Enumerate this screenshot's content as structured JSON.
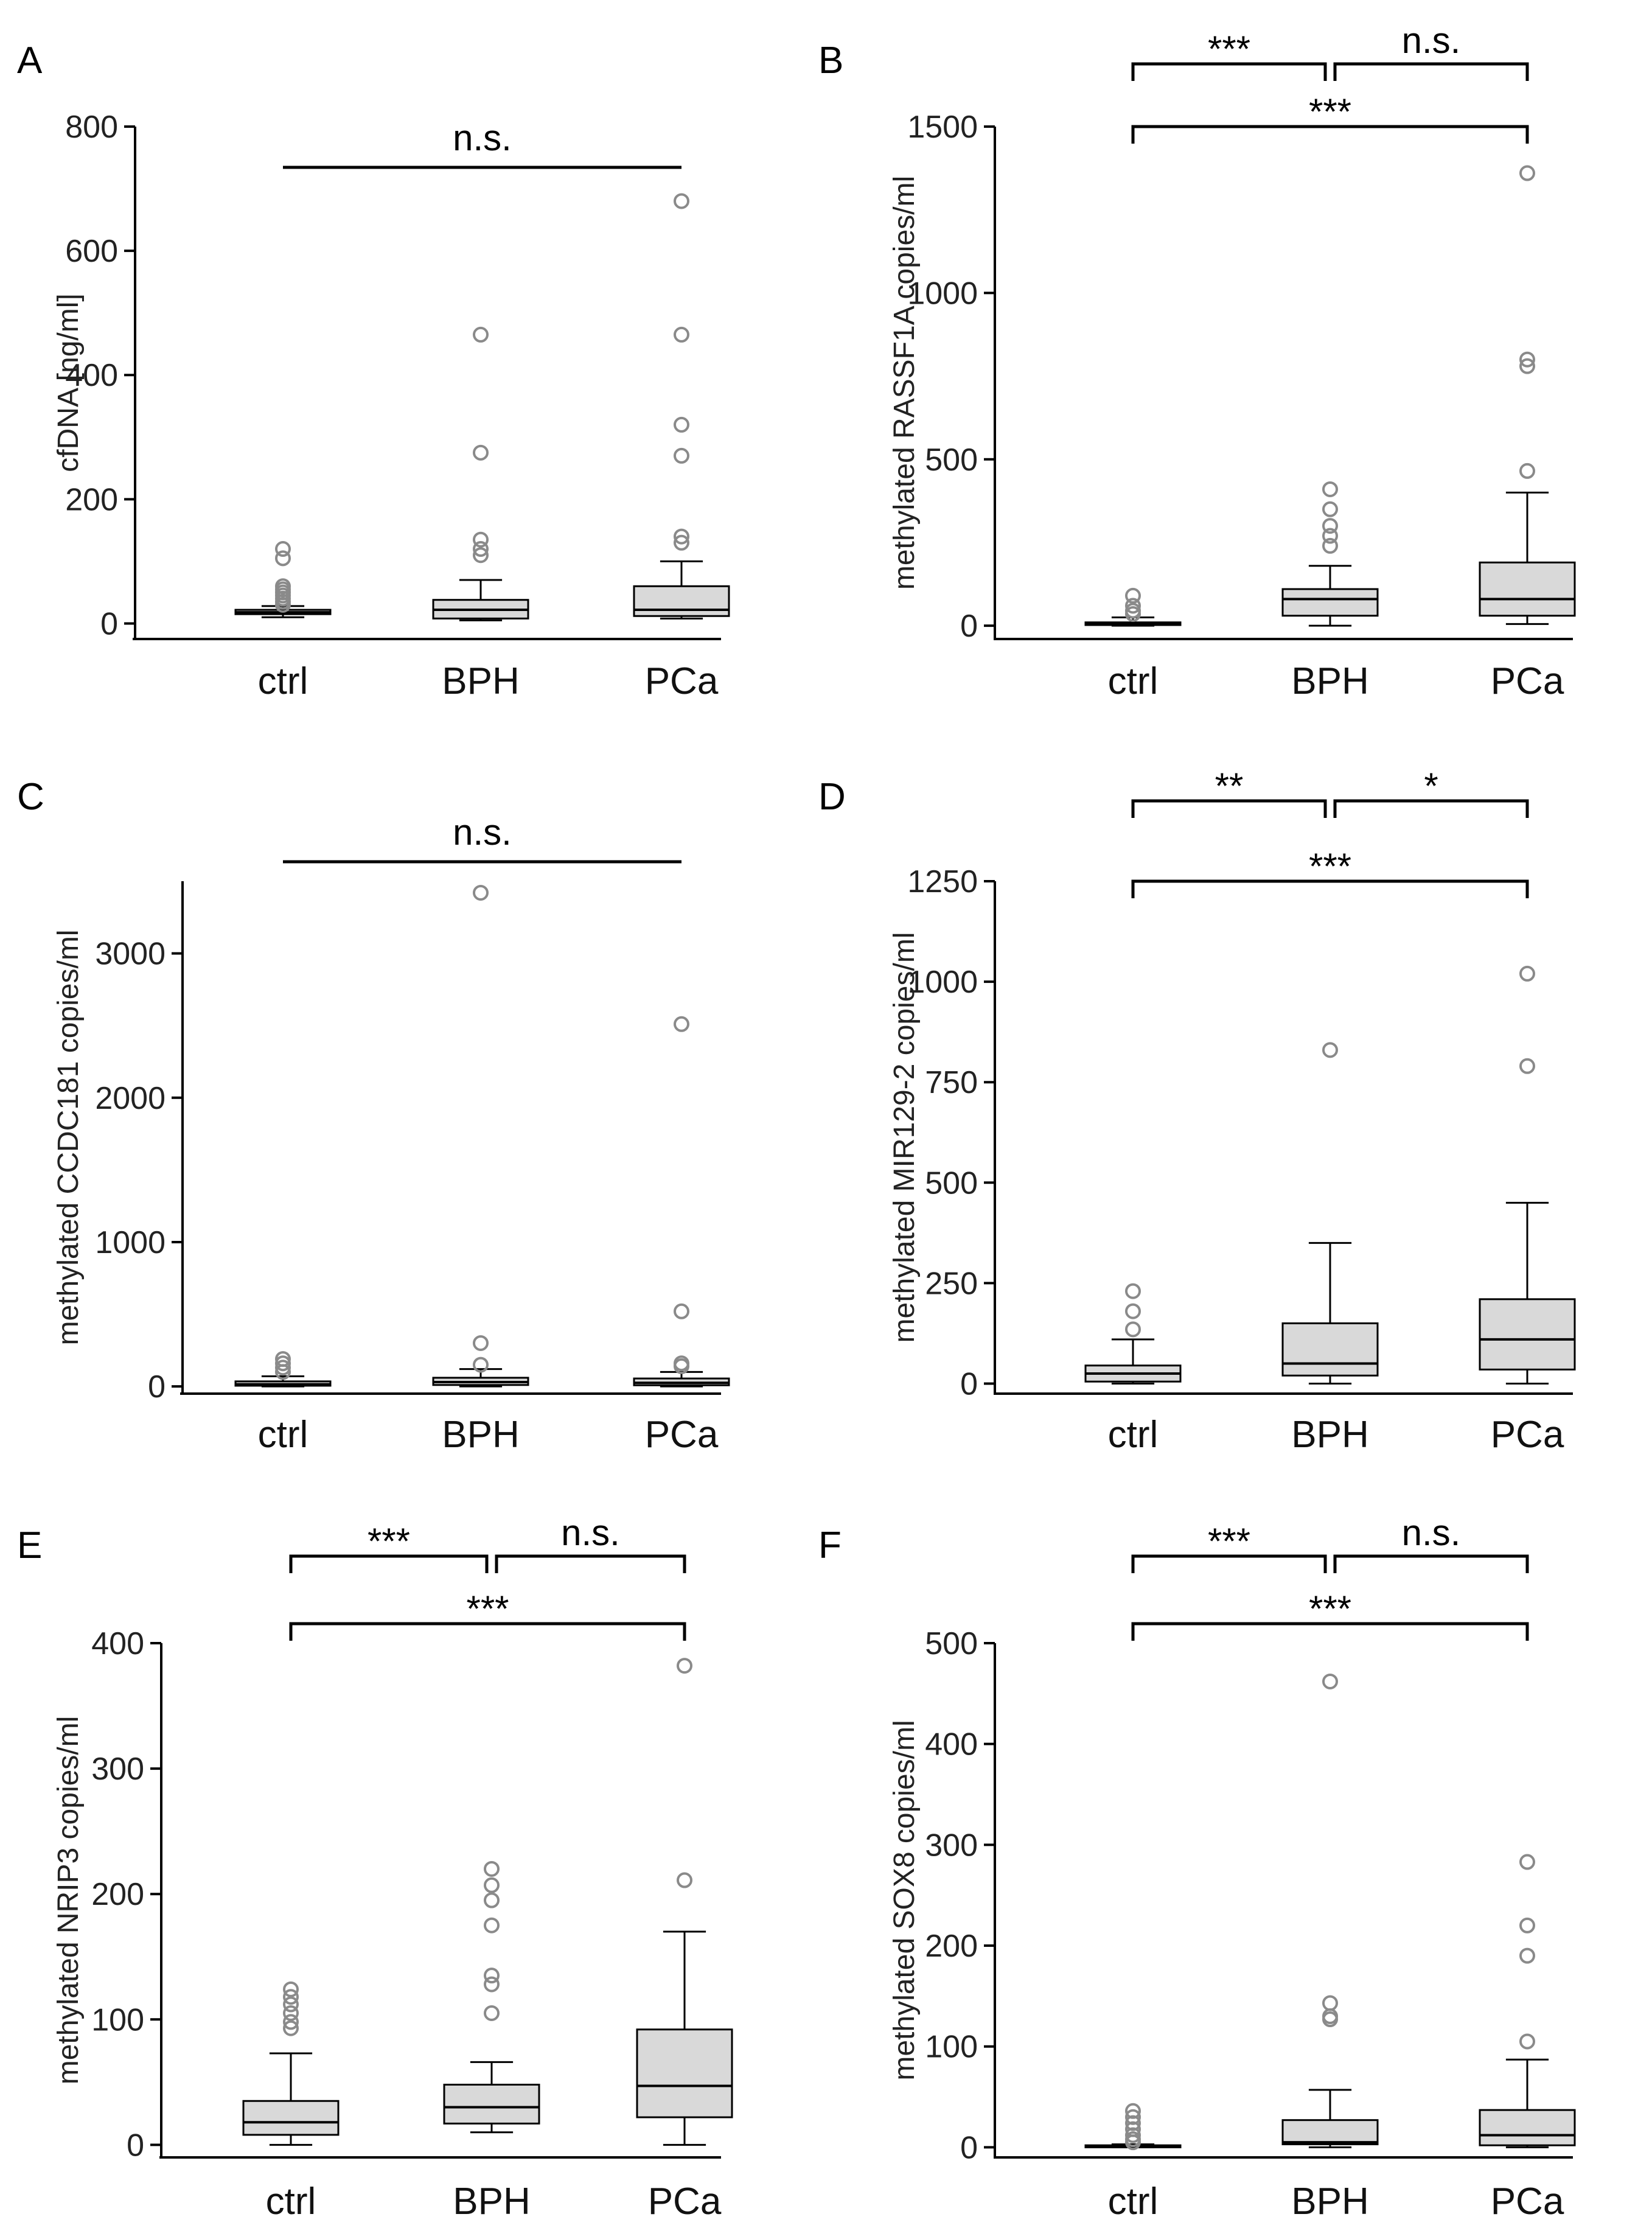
{
  "chart_data": [
    {
      "type": "box",
      "panel": "A",
      "ylabel": "cfDNA [ng/ml]",
      "yticks": [
        0,
        200,
        400,
        600,
        800
      ],
      "ylim": [
        -25,
        800
      ],
      "categories": [
        "ctrl",
        "BPH",
        "PCa"
      ],
      "boxes": [
        {
          "low": 10,
          "q1": 15,
          "median": 18,
          "q3": 22,
          "high": 28,
          "outliers": [
            30,
            35,
            40,
            45,
            50,
            55,
            60,
            105,
            120
          ]
        },
        {
          "low": 5,
          "q1": 8,
          "median": 22,
          "q3": 38,
          "high": 70,
          "outliers": [
            110,
            120,
            135,
            275,
            465
          ]
        },
        {
          "low": 8,
          "q1": 12,
          "median": 22,
          "q3": 60,
          "high": 100,
          "outliers": [
            130,
            140,
            270,
            320,
            465,
            680
          ]
        }
      ],
      "comparisons": [
        {
          "from": 0,
          "to": 2,
          "label": "n.s.",
          "style": "line"
        }
      ]
    },
    {
      "type": "box",
      "panel": "B",
      "ylabel": "methylated RASSF1A copies/ml",
      "yticks": [
        0,
        500,
        1000,
        1500
      ],
      "ylim": [
        -40,
        1500
      ],
      "categories": [
        "ctrl",
        "BPH",
        "PCa"
      ],
      "boxes": [
        {
          "low": 0,
          "q1": 2,
          "median": 5,
          "q3": 10,
          "high": 25,
          "outliers": [
            35,
            45,
            60,
            90
          ]
        },
        {
          "low": 0,
          "q1": 30,
          "median": 80,
          "q3": 110,
          "high": 180,
          "outliers": [
            240,
            270,
            300,
            350,
            410
          ]
        },
        {
          "low": 5,
          "q1": 30,
          "median": 80,
          "q3": 190,
          "high": 400,
          "outliers": [
            465,
            780,
            800,
            1360
          ]
        }
      ],
      "comparisons": [
        {
          "from": 0,
          "to": 1,
          "label": "***",
          "style": "bracket",
          "level": 2
        },
        {
          "from": 1,
          "to": 2,
          "label": "n.s.",
          "style": "bracket",
          "level": 2
        },
        {
          "from": 0,
          "to": 2,
          "label": "***",
          "style": "bracket",
          "level": 1
        }
      ]
    },
    {
      "type": "box",
      "panel": "C",
      "ylabel": "methylated CCDC181 copies/ml",
      "yticks": [
        0,
        1000,
        2000,
        3000
      ],
      "ylim": [
        -50,
        3500
      ],
      "categories": [
        "ctrl",
        "BPH",
        "PCa"
      ],
      "boxes": [
        {
          "low": 0,
          "q1": 5,
          "median": 15,
          "q3": 35,
          "high": 70,
          "outliers": [
            100,
            130,
            160,
            190
          ]
        },
        {
          "low": 0,
          "q1": 10,
          "median": 30,
          "q3": 60,
          "high": 120,
          "outliers": [
            150,
            300,
            3420
          ]
        },
        {
          "low": 0,
          "q1": 8,
          "median": 25,
          "q3": 55,
          "high": 100,
          "outliers": [
            140,
            160,
            520,
            2510
          ]
        }
      ],
      "comparisons": [
        {
          "from": 0,
          "to": 2,
          "label": "n.s.",
          "style": "line"
        }
      ]
    },
    {
      "type": "box",
      "panel": "D",
      "ylabel": "methylated MIR129-2 copies/ml",
      "yticks": [
        0,
        250,
        500,
        750,
        1000,
        1250
      ],
      "ylim": [
        -25,
        1250
      ],
      "categories": [
        "ctrl",
        "BPH",
        "PCa"
      ],
      "boxes": [
        {
          "low": 0,
          "q1": 5,
          "median": 25,
          "q3": 45,
          "high": 110,
          "outliers": [
            135,
            180,
            230
          ]
        },
        {
          "low": 0,
          "q1": 20,
          "median": 50,
          "q3": 150,
          "high": 350,
          "outliers": [
            830
          ]
        },
        {
          "low": 0,
          "q1": 35,
          "median": 110,
          "q3": 210,
          "high": 450,
          "outliers": [
            790,
            1020
          ]
        }
      ],
      "comparisons": [
        {
          "from": 0,
          "to": 1,
          "label": "**",
          "style": "bracket",
          "level": 2
        },
        {
          "from": 1,
          "to": 2,
          "label": "*",
          "style": "bracket",
          "level": 2
        },
        {
          "from": 0,
          "to": 2,
          "label": "***",
          "style": "bracket",
          "level": 1
        }
      ]
    },
    {
      "type": "box",
      "panel": "E",
      "ylabel": "methylated NRIP3 copies/ml",
      "yticks": [
        0,
        100,
        200,
        300,
        400
      ],
      "ylim": [
        -10,
        400
      ],
      "categories": [
        "ctrl",
        "BPH",
        "PCa"
      ],
      "boxes": [
        {
          "low": 0,
          "q1": 8,
          "median": 18,
          "q3": 35,
          "high": 73,
          "outliers": [
            93,
            98,
            105,
            112,
            118,
            124
          ]
        },
        {
          "low": 10,
          "q1": 17,
          "median": 30,
          "q3": 48,
          "high": 66,
          "outliers": [
            105,
            128,
            135,
            175,
            195,
            207,
            220
          ]
        },
        {
          "low": 0,
          "q1": 22,
          "median": 47,
          "q3": 92,
          "high": 170,
          "outliers": [
            211,
            382
          ]
        }
      ],
      "comparisons": [
        {
          "from": 0,
          "to": 1,
          "label": "***",
          "style": "bracket",
          "level": 2
        },
        {
          "from": 1,
          "to": 2,
          "label": "n.s.",
          "style": "bracket",
          "level": 2
        },
        {
          "from": 0,
          "to": 2,
          "label": "***",
          "style": "bracket",
          "level": 1
        }
      ]
    },
    {
      "type": "box",
      "panel": "F",
      "ylabel": "methylated SOX8 copies/ml",
      "yticks": [
        0,
        100,
        200,
        300,
        400,
        500
      ],
      "ylim": [
        -10,
        500
      ],
      "categories": [
        "ctrl",
        "BPH",
        "PCa"
      ],
      "boxes": [
        {
          "low": 0,
          "q1": 0,
          "median": 1,
          "q3": 2,
          "high": 3,
          "outliers": [
            5,
            8,
            12,
            18,
            24,
            30,
            36
          ]
        },
        {
          "low": 0,
          "q1": 3,
          "median": 5,
          "q3": 27,
          "high": 57,
          "outliers": [
            127,
            130,
            143,
            462
          ]
        },
        {
          "low": 0,
          "q1": 2,
          "median": 12,
          "q3": 37,
          "high": 87,
          "outliers": [
            105,
            190,
            220,
            283
          ]
        }
      ],
      "comparisons": [
        {
          "from": 0,
          "to": 1,
          "label": "***",
          "style": "bracket",
          "level": 2
        },
        {
          "from": 1,
          "to": 2,
          "label": "n.s.",
          "style": "bracket",
          "level": 2
        },
        {
          "from": 0,
          "to": 2,
          "label": "***",
          "style": "bracket",
          "level": 1
        }
      ]
    }
  ]
}
